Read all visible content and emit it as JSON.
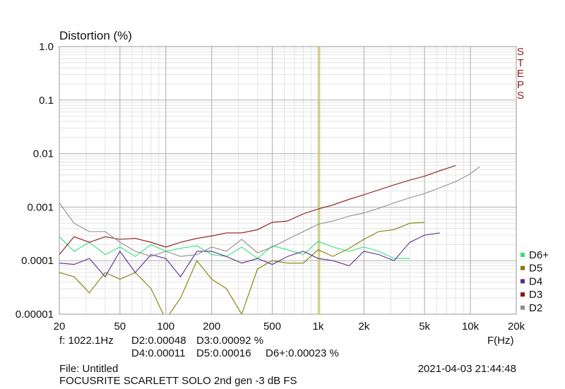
{
  "chart_data": {
    "type": "line",
    "title": "Distortion (%)",
    "side_label": "STEPS",
    "xlabel": "F(Hz)",
    "log_x": true,
    "log_y": true,
    "grid": true,
    "legend": "right",
    "x": [
      20,
      25,
      31.5,
      40,
      50,
      63,
      80,
      100,
      125,
      160,
      200,
      250,
      315,
      400,
      500,
      630,
      800,
      1000,
      1250,
      1600,
      2000,
      2500,
      3150,
      4000,
      5000,
      6300,
      8000,
      10000,
      11500
    ],
    "series": [
      {
        "name": "D6+",
        "color": "#33e07a",
        "values": [
          0.00028,
          0.00015,
          0.00022,
          0.00013,
          0.00018,
          0.00012,
          0.0002,
          0.00015,
          0.00017,
          0.00019,
          0.00013,
          0.00012,
          0.00018,
          0.00011,
          0.00019,
          0.00016,
          0.00013,
          0.00023,
          0.00018,
          0.00015,
          0.00018,
          0.00015,
          0.00011,
          0.00011,
          null,
          null,
          null,
          null,
          null
        ]
      },
      {
        "name": "D5",
        "color": "#7f7f00",
        "values": [
          6e-05,
          5e-05,
          2.5e-05,
          6e-05,
          4.5e-05,
          6e-05,
          3e-05,
          8e-06,
          2e-05,
          0.0001,
          4.5e-05,
          3e-05,
          1e-05,
          7e-05,
          0.0001,
          9e-05,
          9e-05,
          0.00016,
          0.00012,
          0.00017,
          0.00025,
          0.00035,
          0.00038,
          0.0005,
          0.00052,
          null,
          null,
          null,
          null
        ]
      },
      {
        "name": "D4",
        "color": "#5a2a90",
        "values": [
          9e-05,
          8.5e-05,
          0.00011,
          5e-05,
          0.00015,
          6e-05,
          0.00013,
          0.00011,
          5e-05,
          0.00015,
          0.00015,
          0.00012,
          9e-05,
          0.00011,
          8.5e-05,
          0.00012,
          0.00015,
          0.00011,
          0.0001,
          8e-05,
          0.00015,
          0.00013,
          0.0001,
          0.00022,
          0.0003,
          0.00033,
          null,
          null,
          null
        ]
      },
      {
        "name": "D3",
        "color": "#8b1515",
        "values": [
          0.00013,
          0.00028,
          0.00022,
          0.00028,
          0.00025,
          0.00026,
          0.00022,
          0.00018,
          0.00022,
          0.00026,
          0.00029,
          0.00033,
          0.00033,
          0.00038,
          0.00052,
          0.00055,
          0.00075,
          0.00092,
          0.0011,
          0.0014,
          0.0017,
          0.0021,
          0.0026,
          0.0032,
          0.0038,
          0.0048,
          0.006,
          null,
          null
        ]
      },
      {
        "name": "D2",
        "color": "#8c8c8c",
        "values": [
          0.0012,
          0.0005,
          0.00035,
          0.00035,
          0.00022,
          0.00015,
          0.00012,
          0.00015,
          0.00012,
          0.00013,
          0.00018,
          0.00015,
          0.00025,
          0.00014,
          0.00018,
          0.00025,
          0.00035,
          0.00048,
          0.00055,
          0.00068,
          0.00078,
          0.00095,
          0.0012,
          0.0015,
          0.0018,
          0.0023,
          0.003,
          0.0042,
          0.0057
        ]
      }
    ],
    "xlim": [
      20,
      20000
    ],
    "ylim": [
      1e-05,
      1
    ],
    "xticks": [
      20,
      50,
      100,
      200,
      500,
      {
        "value": 1000,
        "label": "1k"
      },
      {
        "value": 2000,
        "label": "2k"
      },
      {
        "value": 5000,
        "label": "5k"
      },
      {
        "value": 10000,
        "label": "10k"
      },
      {
        "value": 20000,
        "label": "20k"
      }
    ],
    "yticks": [
      {
        "value": 1,
        "label": "1.0"
      },
      0.1,
      0.01,
      0.001,
      0.0001,
      1e-05
    ],
    "cursor": 1022.1,
    "cursor_color": "#c8c832",
    "readout": {
      "freq": "f: 1022.1Hz",
      "d2": "D2:0.00048",
      "d3": "D3:0.00092 %",
      "d4": "D4:0.00011",
      "d5": "D5:0.00016",
      "d6": "D6+:0.00023 %",
      "file": "File: Untitled",
      "date": "2021-04-03 21:44:48",
      "device": "FOCUSRITE SCARLETT SOLO 2nd gen -3 dB FS"
    }
  }
}
